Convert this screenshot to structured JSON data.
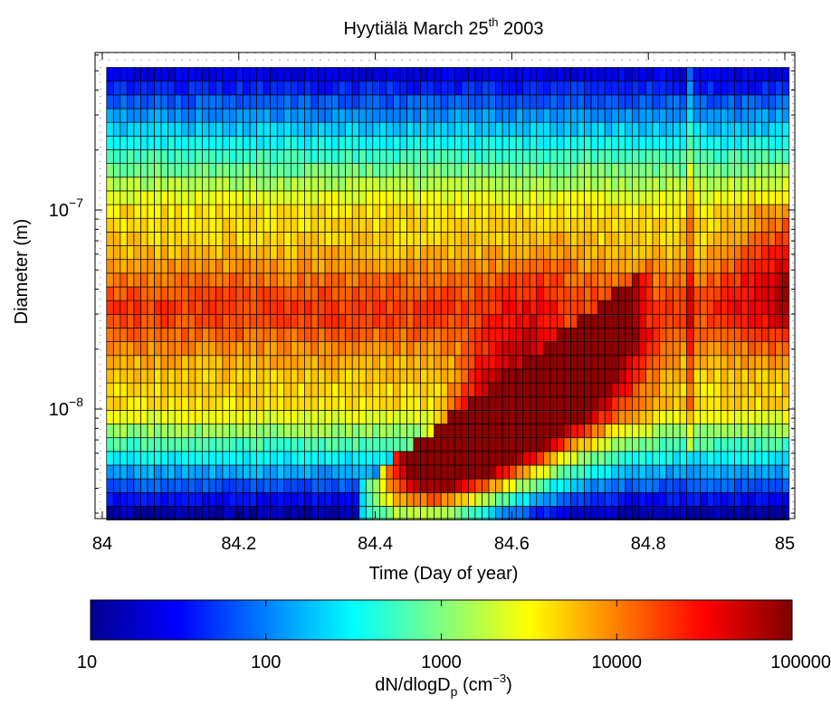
{
  "chart_data": {
    "type": "heatmap",
    "title": {
      "text": "Hyytiälä March 25",
      "superscript": "th",
      "suffix": " 2003"
    },
    "xlabel": "Time (Day of year)",
    "ylabel": "Diameter (m)",
    "x_scale": "linear",
    "y_scale": "log",
    "xlim": [
      84,
      85
    ],
    "ylim": [
      2.6e-09,
      4.9e-07
    ],
    "x_ticks": [
      84,
      84.2,
      84.4,
      84.6,
      84.8,
      85
    ],
    "x_tick_labels": [
      "84",
      "84.2",
      "84.4",
      "84.6",
      "84.8",
      "85"
    ],
    "y_ticks": [
      1e-08,
      1e-07
    ],
    "y_tick_labels": [
      {
        "base": "10",
        "exponent": "−8"
      },
      {
        "base": "10",
        "exponent": "−7"
      }
    ],
    "cells": {
      "time_start": 84.01,
      "time_end": 85.0,
      "time_step": 0.01,
      "diameter_min": 3e-09,
      "diameter_max": 4.8e-07,
      "diameter_bins": 33
    },
    "colorbar": {
      "label": {
        "text": "dN/dlogD",
        "subscript": "p",
        "unit_prefix": " (cm",
        "unit_exponent": "−3",
        "unit_suffix": ")"
      },
      "scale": "log",
      "range": [
        10,
        100000
      ],
      "ticks": [
        10,
        100,
        1000,
        10000,
        100000
      ],
      "tick_labels": [
        "10",
        "100",
        "1000",
        "10000",
        "100000"
      ],
      "colormap": "jet",
      "stops": [
        "#00008f",
        "#0000ff",
        "#00ffff",
        "#ffff00",
        "#ff0000",
        "#800000"
      ]
    },
    "features": {
      "background_log_conc": 3.6,
      "accumulation_mode": {
        "log_diameter": -7.5,
        "width": 0.25,
        "peak_log_conc": 0.65
      },
      "nucleation_event": {
        "start_time": 84.37,
        "peak_time": 84.6,
        "initial_log_diameter": -8.4,
        "growth_per_day": 2.6,
        "peak_log_conc": 4.2
      },
      "small_particles_quiet": {
        "log_diameter_below": -8.0,
        "log_conc": 1.3
      },
      "bright_column_time": 84.86
    }
  },
  "colors": {
    "axis": "#000000",
    "cell_edge": "#000000",
    "dot_grid": "#000000"
  }
}
